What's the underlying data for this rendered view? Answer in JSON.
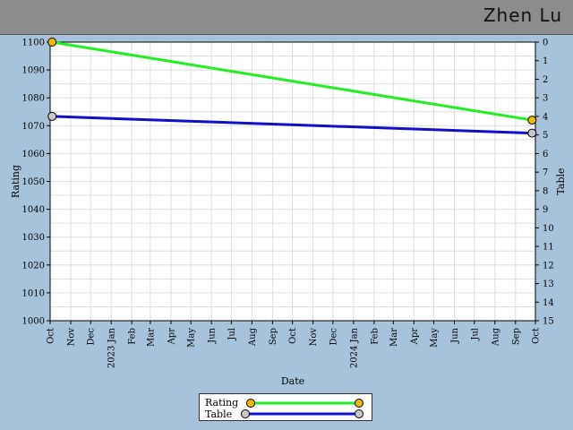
{
  "header": {
    "player_name": "Zhen Lu"
  },
  "chart_data": {
    "type": "line",
    "xlabel": "Date",
    "ylabel": "Rating",
    "y2label": "Table",
    "ylim": [
      1000,
      1100
    ],
    "y2lim": [
      0,
      15
    ],
    "xlim": [
      "2022-10-01",
      "2024-10-01"
    ],
    "x_tick_labels": [
      "Oct",
      "Nov",
      "Dec",
      "2023 Jan",
      "Feb",
      "Mar",
      "Apr",
      "May",
      "Jun",
      "Jul",
      "Aug",
      "Sep",
      "Oct",
      "Nov",
      "Dec",
      "2024 Jan",
      "Feb",
      "Mar",
      "Apr",
      "May",
      "Jun",
      "Jul",
      "Aug",
      "Sep",
      "Oct"
    ],
    "y_tick_labels": [
      "1000",
      "1010",
      "1020",
      "1030",
      "1040",
      "1050",
      "1060",
      "1070",
      "1080",
      "1090",
      "1100"
    ],
    "y2_tick_labels": [
      "0",
      "1",
      "2",
      "3",
      "4",
      "5",
      "6",
      "7",
      "8",
      "9",
      "10",
      "11",
      "12",
      "13",
      "14",
      "15"
    ],
    "grid": true,
    "legend_position": "bottom-center",
    "series": [
      {
        "name": "Rating",
        "axis": "left",
        "color": "#22ee22",
        "marker_color": "#f5b800",
        "points": [
          {
            "x": "2022-10-04",
            "y": 1100
          },
          {
            "x": "2024-09-26",
            "y": 1072
          }
        ]
      },
      {
        "name": "Table",
        "axis": "right",
        "color": "#1010cc",
        "marker_color": "#c8c8c8",
        "points": [
          {
            "x": "2022-10-04",
            "y": 4
          },
          {
            "x": "2024-09-26",
            "y": 4.9
          }
        ]
      }
    ]
  },
  "legend": {
    "items": [
      {
        "label": "Rating",
        "color": "#22ee22",
        "marker_color": "#f5b800"
      },
      {
        "label": "Table",
        "color": "#1010cc",
        "marker_color": "#c8c8c8"
      }
    ]
  }
}
